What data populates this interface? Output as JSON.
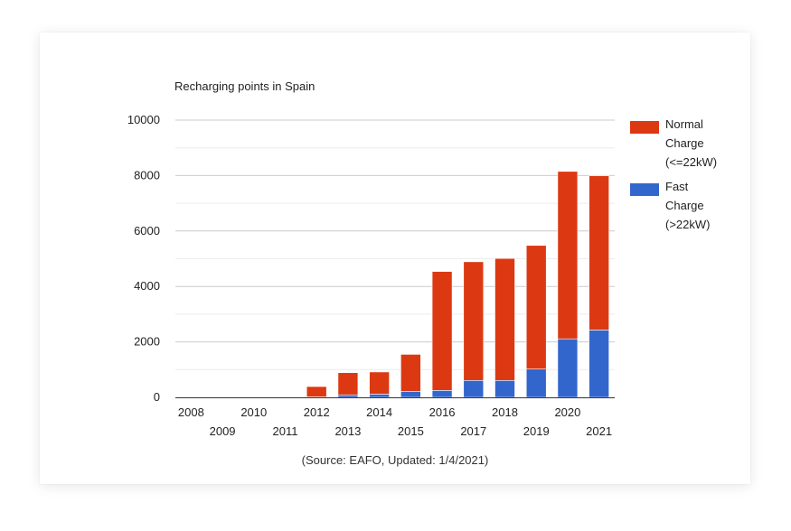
{
  "chart_data": {
    "type": "bar",
    "stacked": true,
    "title": "Recharging points in Spain",
    "source": "(Source: EAFO, Updated: 1/4/2021)",
    "categories": [
      "2008",
      "2009",
      "2010",
      "2011",
      "2012",
      "2013",
      "2014",
      "2015",
      "2016",
      "2017",
      "2018",
      "2019",
      "2020",
      "2021"
    ],
    "series": [
      {
        "name": "Fast Charge (>22kW)",
        "legend_lines": [
          "Fast",
          "Charge",
          "(>22kW)"
        ],
        "color": "#3366cc",
        "values": [
          0,
          0,
          0,
          0,
          15,
          90,
          115,
          210,
          250,
          610,
          610,
          1020,
          2110,
          2430
        ]
      },
      {
        "name": "Normal Charge (<=22kW)",
        "legend_lines": [
          "Normal",
          "Charge",
          "(<=22kW)"
        ],
        "color": "#dc3912",
        "values": [
          0,
          0,
          0,
          0,
          375,
          800,
          800,
          1340,
          4290,
          4280,
          4400,
          4460,
          6040,
          5560
        ]
      }
    ],
    "yticks": [
      "0",
      "2000",
      "4000",
      "6000",
      "8000",
      "10000"
    ],
    "ylim": [
      0,
      10000
    ],
    "grid": true,
    "legend": "right"
  }
}
